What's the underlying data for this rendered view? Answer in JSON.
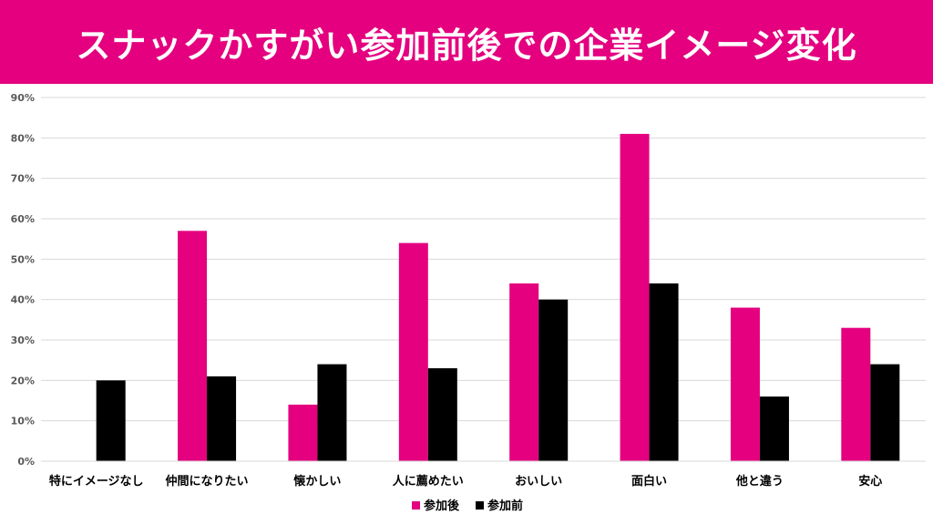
{
  "colors": {
    "banner": "#e4007f",
    "after": "#e4007f",
    "before": "#000000",
    "grid": "#d9d9d9",
    "tick_text": "#595959",
    "label_text": "#000000"
  },
  "chart_data": {
    "type": "bar",
    "title": "スナックかすがい参加前後での企業イメージ変化",
    "xlabel": "",
    "ylabel": "",
    "ylim": [
      0,
      90
    ],
    "yticks": [
      "0%",
      "10%",
      "20%",
      "30%",
      "40%",
      "50%",
      "60%",
      "70%",
      "80%",
      "90%"
    ],
    "grid": true,
    "legend_position": "bottom",
    "categories": [
      "特にイメージなし",
      "仲間になりたい",
      "懐かしい",
      "人に薦めたい",
      "おいしい",
      "面白い",
      "他と違う",
      "安心"
    ],
    "series": [
      {
        "name": "参加後",
        "values": [
          0,
          57,
          14,
          54,
          44,
          81,
          38,
          33
        ]
      },
      {
        "name": "参加前",
        "values": [
          20,
          21,
          24,
          23,
          40,
          44,
          16,
          24
        ]
      }
    ]
  }
}
